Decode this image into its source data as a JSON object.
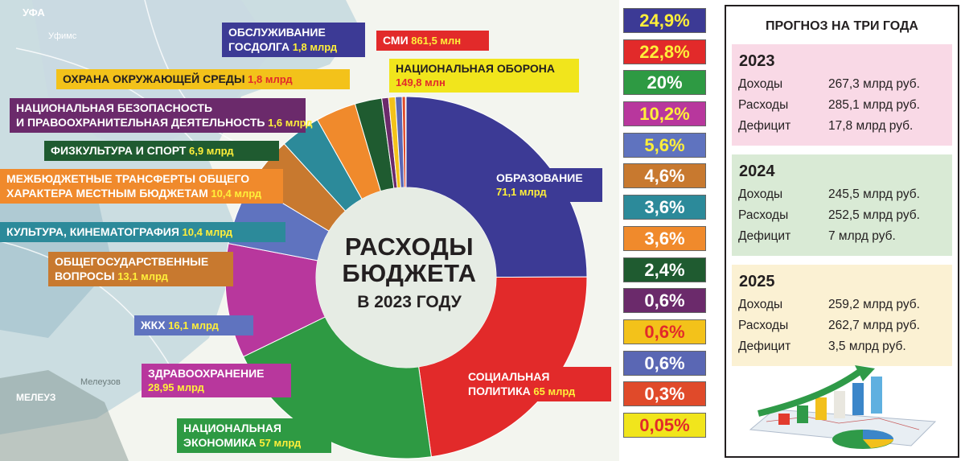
{
  "chart_data": {
    "type": "pie",
    "title": "РАСХОДЫ БЮДЖЕТА",
    "subtitle": "В 2023 ГОДУ",
    "slices": [
      {
        "label_lines": [
          "ОБРАЗОВАНИЕ"
        ],
        "value": "71,1 млрд",
        "share": 24.9,
        "color": "#3c3a95"
      },
      {
        "label_lines": [
          "СОЦИАЛЬНАЯ",
          "ПОЛИТИКА"
        ],
        "value": "65 млрд",
        "share": 22.8,
        "color": "#e22a2a"
      },
      {
        "label_lines": [
          "НАЦИОНАЛЬНАЯ",
          "ЭКОНОМИКА"
        ],
        "value": "57 млрд",
        "share": 20,
        "color": "#2e9a43"
      },
      {
        "label_lines": [
          "ЗДРАВООХРАНЕНИЕ"
        ],
        "value": "28,95 млрд",
        "share": 10.2,
        "color": "#b8379d"
      },
      {
        "label_lines": [
          "ЖКХ"
        ],
        "value": "16,1 млрд",
        "share": 5.6,
        "color": "#5f73bf"
      },
      {
        "label_lines": [
          "ОБЩЕГОСУДАРСТВЕННЫЕ",
          "ВОПРОСЫ"
        ],
        "value": "13,1 млрд",
        "share": 4.6,
        "color": "#c8792f"
      },
      {
        "label_lines": [
          "КУЛЬТУРА, КИНЕМАТОГРАФИЯ"
        ],
        "value": "10,4 млрд",
        "share": 3.6,
        "color": "#2c8a9a"
      },
      {
        "label_lines": [
          "МЕЖБЮДЖЕТНЫЕ ТРАНСФЕРТЫ ОБЩЕГО",
          "ХАРАКТЕРА МЕСТНЫМ БЮДЖЕТАМ"
        ],
        "value": "10,4 млрд",
        "share": 3.6,
        "color": "#f08a2c"
      },
      {
        "label_lines": [
          "ФИЗКУЛЬТУРА И СПОРТ"
        ],
        "value": "6,9 млрд",
        "share": 2.4,
        "color": "#1f5b30"
      },
      {
        "label_lines": [
          "НАЦИОНАЛЬНАЯ БЕЗОПАСНОСТЬ",
          "И ПРАВООХРАНИТЕЛЬНАЯ ДЕЯТЕЛЬНОСТЬ"
        ],
        "value": "1,6 млрд",
        "share": 0.6,
        "color": "#6b2a6b"
      },
      {
        "label_lines": [
          "ОХРАНА ОКРУЖАЮЩЕЙ СРЕДЫ"
        ],
        "value": "1,8 млрд",
        "share": 0.6,
        "color": "#f3c21a"
      },
      {
        "label_lines": [
          "ОБСЛУЖИВАНИЕ",
          "ГОСДОЛГА"
        ],
        "value": "1,8 млрд",
        "share": 0.6,
        "color": "#5a67b4"
      },
      {
        "label_lines": [
          "СМИ"
        ],
        "value": "861,5 млн",
        "share": 0.3,
        "color": "#e04a2a"
      },
      {
        "label_lines": [
          "НАЦИОНАЛЬНАЯ ОБОРОНА"
        ],
        "value": "149,8 млн",
        "share": 0.05,
        "color": "#f1e51c"
      }
    ],
    "percent_labels": [
      "24,9%",
      "22,8%",
      "20%",
      "10,2%",
      "5,6%",
      "4,6%",
      "3,6%",
      "3,6%",
      "2,4%",
      "0,6%",
      "0,6%",
      "0,6%",
      "0,3%",
      "0,05%"
    ]
  },
  "map_labels": [
    "УФА",
    "Уфимс",
    "Мелеузов",
    "МЕЛЕУЗ"
  ],
  "forecast": {
    "title": "ПРОГНОЗ НА ТРИ ГОДА",
    "years": [
      {
        "year": "2023",
        "bg": "#f9d9e6",
        "rows": [
          {
            "k": "Доходы",
            "v": "267,3 млрд руб."
          },
          {
            "k": "Расходы",
            "v": "285,1 млрд руб."
          },
          {
            "k": "Дефицит",
            "v": "17,8 млрд руб."
          }
        ]
      },
      {
        "year": "2024",
        "bg": "#d9ead5",
        "rows": [
          {
            "k": "Доходы",
            "v": "245,5 млрд руб."
          },
          {
            "k": "Расходы",
            "v": "252,5 млрд руб."
          },
          {
            "k": "Дефицит",
            "v": "7 млрд руб."
          }
        ]
      },
      {
        "year": "2025",
        "bg": "#fbf1d3",
        "rows": [
          {
            "k": "Доходы",
            "v": "259,2 млрд руб."
          },
          {
            "k": "Расходы",
            "v": "262,7 млрд руб."
          },
          {
            "k": "Дефицит",
            "v": "3,5 млрд руб."
          }
        ]
      }
    ]
  }
}
